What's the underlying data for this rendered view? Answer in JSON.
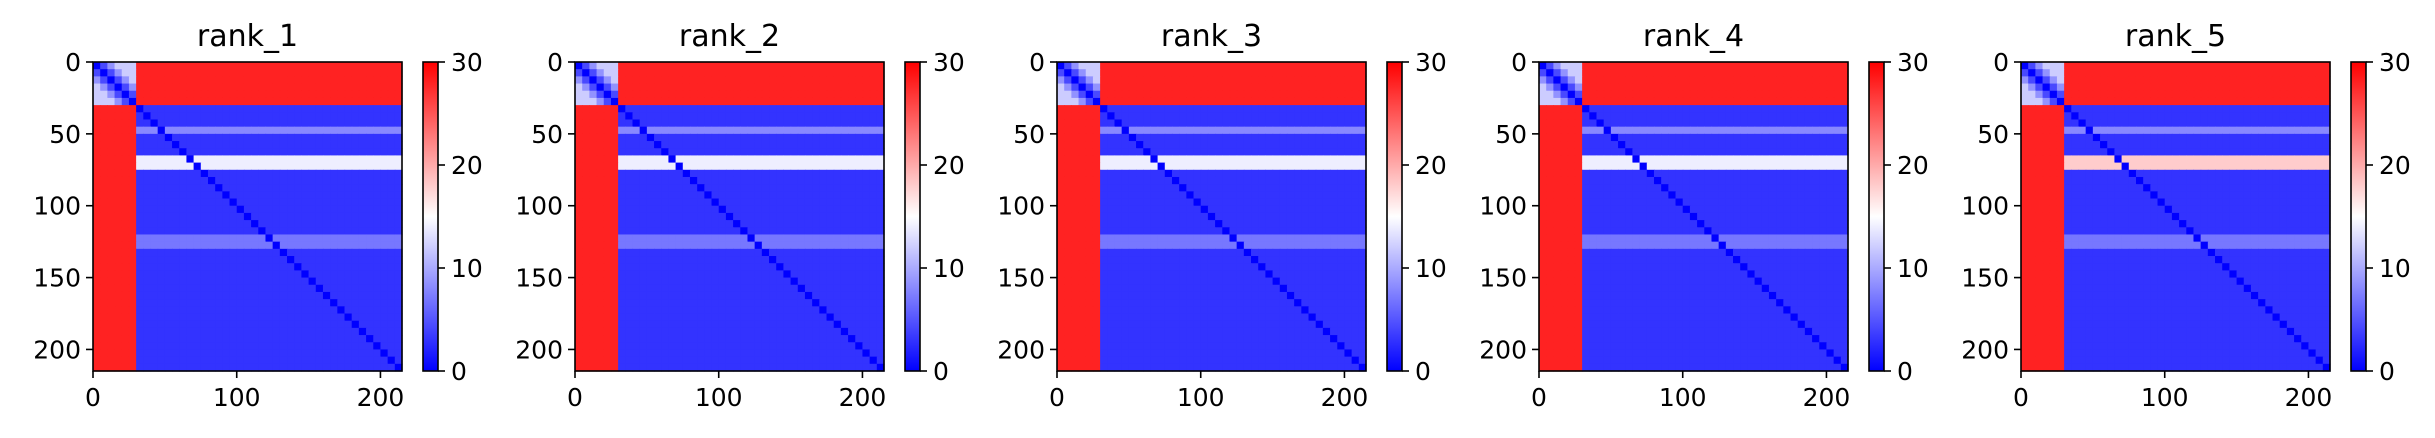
{
  "chart_data": [
    {
      "type": "heatmap",
      "title": "rank_1",
      "grid_size": 215,
      "xlim": [
        0,
        215
      ],
      "ylim": [
        215,
        0
      ],
      "xticks": [
        0,
        100,
        200
      ],
      "yticks": [
        0,
        50,
        100,
        150,
        200
      ],
      "colorbar": {
        "min": 0,
        "max": 30,
        "ticks": [
          0,
          10,
          20,
          30
        ],
        "colors": [
          "#0000ff",
          "#ffffff",
          "#ff0000"
        ]
      },
      "regions": [
        {
          "name": "first-domain-block",
          "range": [
            0,
            30
          ],
          "value": 12
        },
        {
          "name": "first-domain-to-rest",
          "value": 28
        },
        {
          "name": "rest-block",
          "value": 3
        },
        {
          "name": "diagonal",
          "value": 0
        }
      ],
      "highlight_rows": [
        {
          "index": 48,
          "value": 8
        },
        {
          "index": 70,
          "value": 14
        },
        {
          "index": 125,
          "value": 7
        }
      ]
    },
    {
      "type": "heatmap",
      "title": "rank_2",
      "grid_size": 215,
      "xlim": [
        0,
        215
      ],
      "ylim": [
        215,
        0
      ],
      "xticks": [
        0,
        100,
        200
      ],
      "yticks": [
        0,
        50,
        100,
        150,
        200
      ],
      "colorbar": {
        "min": 0,
        "max": 30,
        "ticks": [
          0,
          10,
          20,
          30
        ],
        "colors": [
          "#0000ff",
          "#ffffff",
          "#ff0000"
        ]
      },
      "regions": [
        {
          "name": "first-domain-block",
          "range": [
            0,
            30
          ],
          "value": 12
        },
        {
          "name": "first-domain-to-rest",
          "value": 28
        },
        {
          "name": "rest-block",
          "value": 3
        },
        {
          "name": "diagonal",
          "value": 0
        }
      ],
      "highlight_rows": [
        {
          "index": 48,
          "value": 8
        },
        {
          "index": 70,
          "value": 14
        },
        {
          "index": 125,
          "value": 7
        }
      ]
    },
    {
      "type": "heatmap",
      "title": "rank_3",
      "grid_size": 215,
      "xlim": [
        0,
        215
      ],
      "ylim": [
        215,
        0
      ],
      "xticks": [
        0,
        100,
        200
      ],
      "yticks": [
        0,
        50,
        100,
        150,
        200
      ],
      "colorbar": {
        "min": 0,
        "max": 30,
        "ticks": [
          0,
          10,
          20,
          30
        ],
        "colors": [
          "#0000ff",
          "#ffffff",
          "#ff0000"
        ]
      },
      "regions": [
        {
          "name": "first-domain-block",
          "range": [
            0,
            30
          ],
          "value": 12
        },
        {
          "name": "first-domain-to-rest",
          "value": 28
        },
        {
          "name": "rest-block",
          "value": 3
        },
        {
          "name": "diagonal",
          "value": 0
        }
      ],
      "highlight_rows": [
        {
          "index": 48,
          "value": 8
        },
        {
          "index": 70,
          "value": 14
        },
        {
          "index": 125,
          "value": 7
        }
      ]
    },
    {
      "type": "heatmap",
      "title": "rank_4",
      "grid_size": 215,
      "xlim": [
        0,
        215
      ],
      "ylim": [
        215,
        0
      ],
      "xticks": [
        0,
        100,
        200
      ],
      "yticks": [
        0,
        50,
        100,
        150,
        200
      ],
      "colorbar": {
        "min": 0,
        "max": 30,
        "ticks": [
          0,
          10,
          20,
          30
        ],
        "colors": [
          "#0000ff",
          "#ffffff",
          "#ff0000"
        ]
      },
      "regions": [
        {
          "name": "first-domain-block",
          "range": [
            0,
            30
          ],
          "value": 12
        },
        {
          "name": "first-domain-to-rest",
          "value": 28
        },
        {
          "name": "rest-block",
          "value": 3
        },
        {
          "name": "diagonal",
          "value": 0
        }
      ],
      "highlight_rows": [
        {
          "index": 48,
          "value": 8
        },
        {
          "index": 70,
          "value": 14
        },
        {
          "index": 125,
          "value": 7
        }
      ]
    },
    {
      "type": "heatmap",
      "title": "rank_5",
      "grid_size": 215,
      "xlim": [
        0,
        215
      ],
      "ylim": [
        215,
        0
      ],
      "xticks": [
        0,
        100,
        200
      ],
      "yticks": [
        0,
        50,
        100,
        150,
        200
      ],
      "colorbar": {
        "min": 0,
        "max": 30,
        "ticks": [
          0,
          10,
          20,
          30
        ],
        "colors": [
          "#0000ff",
          "#ffffff",
          "#ff0000"
        ]
      },
      "regions": [
        {
          "name": "first-domain-block",
          "range": [
            0,
            30
          ],
          "value": 12
        },
        {
          "name": "first-domain-to-rest",
          "value": 28
        },
        {
          "name": "rest-block",
          "value": 3
        },
        {
          "name": "diagonal",
          "value": 0
        }
      ],
      "highlight_rows": [
        {
          "index": 48,
          "value": 8
        },
        {
          "index": 70,
          "value": 18
        },
        {
          "index": 125,
          "value": 7
        }
      ]
    }
  ]
}
